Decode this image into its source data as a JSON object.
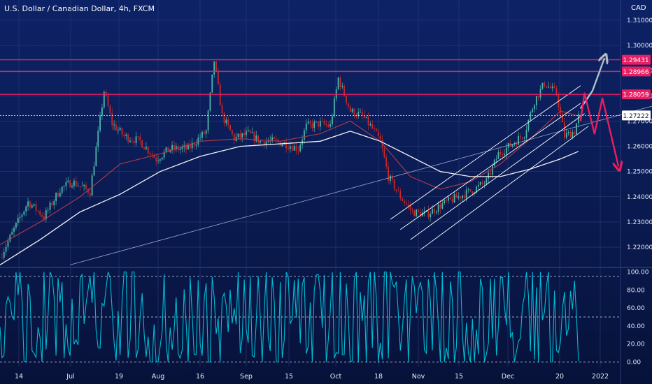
{
  "title": "U.S. Dollar / Canadian Dollar, 4h, FXCM",
  "currency": "CAD",
  "colors": {
    "bg": "#0c1a4a",
    "grid": "#2a3c7a",
    "up": "#4db6ac",
    "down": "#c62828",
    "resistance": "#e91e63",
    "oscillator": "#00bcd4",
    "forecast_up": "#b0bec5",
    "forecast_down": "#e91e63"
  },
  "chart_data": [
    {
      "type": "candlestick",
      "ylim": [
        1.212,
        1.318
      ],
      "y_ticks": [
        "1.31000",
        "1.30000",
        "1.29000",
        "1.28000",
        "1.27000",
        "1.26000",
        "1.25000",
        "1.24000",
        "1.23000",
        "1.22000"
      ],
      "x_ticks": [
        "14",
        "Jul",
        "19",
        "Aug",
        "16",
        "Sep",
        "15",
        "Oct",
        "18",
        "Nov",
        "15",
        "Dec",
        "20",
        "2022"
      ],
      "price_labels": [
        {
          "label": "1.29431",
          "value": 1.29431,
          "kind": "resistance"
        },
        {
          "label": "1.28966",
          "value": 1.28966,
          "kind": "resistance"
        },
        {
          "label": "1.28059",
          "value": 1.28059,
          "kind": "resistance"
        },
        {
          "label": "1.27222",
          "value": 1.27222,
          "kind": "last"
        }
      ],
      "behind_label": "1.27???",
      "close_path": [
        [
          0,
          1.216
        ],
        [
          14,
          1.238
        ],
        [
          22,
          1.232
        ],
        [
          30,
          1.243
        ],
        [
          36,
          1.246
        ],
        [
          45,
          1.242
        ],
        [
          52,
          1.282
        ],
        [
          56,
          1.269
        ],
        [
          62,
          1.264
        ],
        [
          70,
          1.262
        ],
        [
          78,
          1.255
        ],
        [
          85,
          1.259
        ],
        [
          94,
          1.259
        ],
        [
          103,
          1.266
        ],
        [
          107,
          1.294
        ],
        [
          111,
          1.272
        ],
        [
          117,
          1.263
        ],
        [
          124,
          1.265
        ],
        [
          130,
          1.262
        ],
        [
          136,
          1.262
        ],
        [
          143,
          1.261
        ],
        [
          149,
          1.259
        ],
        [
          153,
          1.268
        ],
        [
          160,
          1.269
        ],
        [
          165,
          1.268
        ],
        [
          169,
          1.287
        ],
        [
          175,
          1.274
        ],
        [
          181,
          1.272
        ],
        [
          186,
          1.267
        ],
        [
          190,
          1.262
        ],
        [
          194,
          1.248
        ],
        [
          200,
          1.24
        ],
        [
          206,
          1.234
        ],
        [
          213,
          1.233
        ],
        [
          221,
          1.237
        ],
        [
          229,
          1.24
        ],
        [
          237,
          1.243
        ],
        [
          243,
          1.246
        ],
        [
          249,
          1.257
        ],
        [
          256,
          1.261
        ],
        [
          262,
          1.265
        ],
        [
          267,
          1.278
        ],
        [
          272,
          1.285
        ],
        [
          278,
          1.281
        ],
        [
          282,
          1.264
        ],
        [
          287,
          1.266
        ],
        [
          289,
          1.272
        ]
      ],
      "ma_white": [
        [
          0,
          1.213
        ],
        [
          20,
          1.223
        ],
        [
          40,
          1.234
        ],
        [
          60,
          1.241
        ],
        [
          80,
          1.25
        ],
        [
          100,
          1.256
        ],
        [
          120,
          1.26
        ],
        [
          140,
          1.261
        ],
        [
          160,
          1.262
        ],
        [
          175,
          1.266
        ],
        [
          190,
          1.262
        ],
        [
          205,
          1.256
        ],
        [
          220,
          1.25
        ],
        [
          235,
          1.248
        ],
        [
          250,
          1.248
        ],
        [
          265,
          1.251
        ],
        [
          280,
          1.255
        ],
        [
          289,
          1.258
        ]
      ],
      "ma_red": [
        [
          0,
          1.221
        ],
        [
          20,
          1.23
        ],
        [
          40,
          1.24
        ],
        [
          60,
          1.253
        ],
        [
          80,
          1.257
        ],
        [
          100,
          1.262
        ],
        [
          120,
          1.263
        ],
        [
          140,
          1.262
        ],
        [
          160,
          1.265
        ],
        [
          175,
          1.27
        ],
        [
          190,
          1.262
        ],
        [
          205,
          1.248
        ],
        [
          220,
          1.243
        ],
        [
          235,
          1.246
        ],
        [
          250,
          1.253
        ],
        [
          265,
          1.263
        ],
        [
          280,
          1.274
        ],
        [
          289,
          1.272
        ]
      ],
      "trendline": [
        [
          35,
          1.213
        ],
        [
          340,
          1.279
        ]
      ],
      "channel_lines": [
        [
          [
            195,
            1.231
          ],
          [
            290,
            1.284
          ]
        ],
        [
          [
            200,
            1.227
          ],
          [
            290,
            1.277
          ]
        ],
        [
          [
            205,
            1.223
          ],
          [
            292,
            1.273
          ]
        ],
        [
          [
            210,
            1.219
          ],
          [
            294,
            1.268
          ]
        ]
      ],
      "forecast_up": [
        [
          290,
          1.275
        ],
        [
          296,
          1.282
        ],
        [
          302,
          1.295
        ]
      ],
      "forecast_down": [
        [
          290,
          1.27
        ],
        [
          292,
          1.281
        ],
        [
          297,
          1.265
        ],
        [
          301,
          1.279
        ],
        [
          306,
          1.262
        ],
        [
          309,
          1.252
        ]
      ]
    },
    {
      "type": "line",
      "name": "oscillator",
      "ylim": [
        -5,
        105
      ],
      "y_ticks": [
        "100.00",
        "80.00",
        "60.00",
        "40.00",
        "20.00",
        "0.00"
      ],
      "levels": [
        0,
        50,
        95
      ]
    }
  ]
}
